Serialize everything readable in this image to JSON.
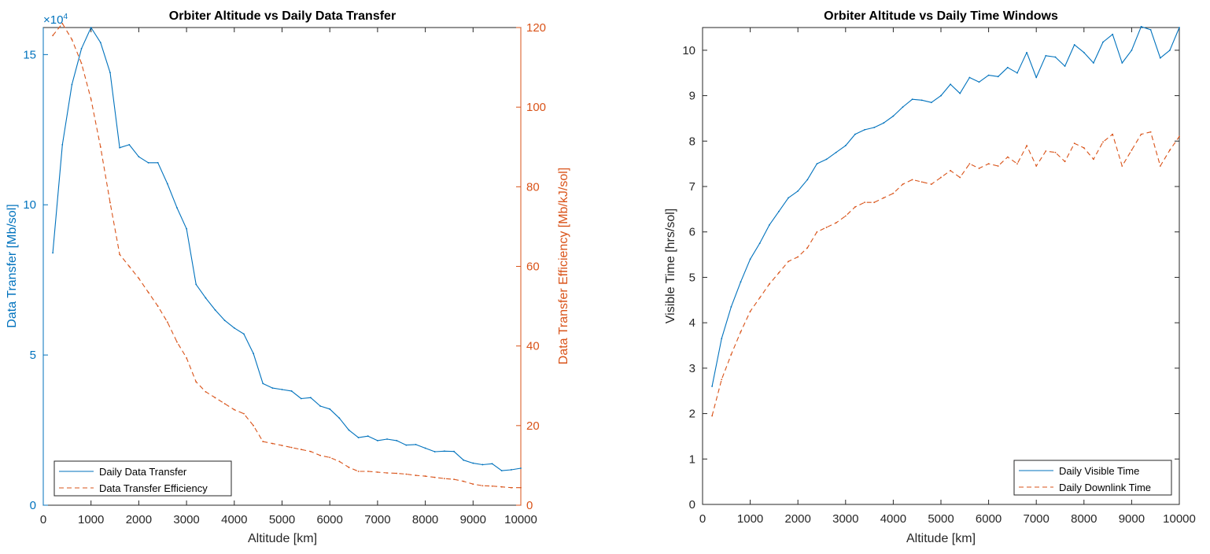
{
  "colors": {
    "blue": "#0072BD",
    "orange": "#D95319",
    "axis": "#262626"
  },
  "chart_data": [
    {
      "type": "line",
      "title": "Orbiter Altitude vs Daily Data Transfer",
      "xlabel": "Altitude [km]",
      "ylabel": "Data Transfer [Mb/sol]",
      "ylabel_right": "Data Transfer Efficiency [Mb/kJ/sol]",
      "exponent_label": "×10",
      "exponent_power": "4",
      "xlim": [
        0,
        10000
      ],
      "ylim": [
        0,
        159000
      ],
      "ylim_right": [
        0,
        120
      ],
      "x_ticks": [
        "0",
        "1000",
        "2000",
        "3000",
        "4000",
        "5000",
        "6000",
        "7000",
        "8000",
        "9000",
        "10000"
      ],
      "y_ticks": [
        "0",
        "5",
        "10",
        "15"
      ],
      "y_ticks_right": [
        "0",
        "20",
        "40",
        "60",
        "80",
        "100",
        "120"
      ],
      "legend_position": "bottom-left",
      "x": [
        200,
        400,
        600,
        800,
        1000,
        1200,
        1400,
        1600,
        1800,
        2000,
        2200,
        2400,
        2600,
        2800,
        3000,
        3200,
        3400,
        3600,
        3800,
        4000,
        4200,
        4400,
        4600,
        4800,
        5000,
        5200,
        5400,
        5600,
        5800,
        6000,
        6200,
        6400,
        6600,
        6800,
        7000,
        7200,
        7400,
        7600,
        7800,
        8000,
        8200,
        8400,
        8600,
        8800,
        9000,
        9200,
        9400,
        9600,
        9800,
        10000
      ],
      "series": [
        {
          "name": "Daily Data Transfer",
          "axis": "left",
          "style": "solid",
          "color": "#0072BD",
          "values": [
            84000,
            120000,
            140000,
            152000,
            159000,
            154000,
            144000,
            119000,
            120000,
            116000,
            114000,
            114000,
            107000,
            99000,
            92000,
            73500,
            69000,
            65000,
            61500,
            59000,
            57000,
            50500,
            40500,
            39000,
            38500,
            38000,
            35500,
            35800,
            33000,
            32000,
            29000,
            25000,
            22500,
            23000,
            21500,
            22000,
            21500,
            20000,
            20200,
            19000,
            17800,
            18000,
            17900,
            15000,
            14000,
            13500,
            13800,
            11500,
            11800,
            12300
          ]
        },
        {
          "name": "Data Transfer Efficiency",
          "axis": "right",
          "style": "dashed",
          "color": "#D95319",
          "values": [
            118,
            121,
            117,
            111,
            102,
            90,
            76,
            63,
            60,
            57,
            53.5,
            50,
            46,
            41,
            37,
            31,
            28.5,
            27,
            25.5,
            24,
            23,
            20,
            16,
            15.5,
            15,
            14.5,
            14,
            13.5,
            12.5,
            12,
            11,
            9.5,
            8.5,
            8.5,
            8.3,
            8.1,
            8,
            7.8,
            7.5,
            7.3,
            7,
            6.7,
            6.5,
            6,
            5.3,
            4.9,
            4.8,
            4.6,
            4.4,
            4.4
          ]
        }
      ]
    },
    {
      "type": "line",
      "title": "Orbiter Altitude vs Daily Time Windows",
      "xlabel": "Altitude [km]",
      "ylabel": "Visible Time  [hrs/sol]",
      "xlim": [
        0,
        10000
      ],
      "ylim": [
        0,
        10.5
      ],
      "x_ticks": [
        "0",
        "1000",
        "2000",
        "3000",
        "4000",
        "5000",
        "6000",
        "7000",
        "8000",
        "9000",
        "10000"
      ],
      "y_ticks": [
        "0",
        "1",
        "2",
        "3",
        "4",
        "5",
        "6",
        "7",
        "8",
        "9",
        "10"
      ],
      "legend_position": "bottom-right",
      "x": [
        200,
        400,
        600,
        800,
        1000,
        1200,
        1400,
        1600,
        1800,
        2000,
        2200,
        2400,
        2600,
        2800,
        3000,
        3200,
        3400,
        3600,
        3800,
        4000,
        4200,
        4400,
        4600,
        4800,
        5000,
        5200,
        5400,
        5600,
        5800,
        6000,
        6200,
        6400,
        6600,
        6800,
        7000,
        7200,
        7400,
        7600,
        7800,
        8000,
        8200,
        8400,
        8600,
        8800,
        9000,
        9200,
        9400,
        9600,
        9800,
        10000
      ],
      "series": [
        {
          "name": "Daily Visible Time",
          "style": "solid",
          "color": "#0072BD",
          "values": [
            2.6,
            3.65,
            4.35,
            4.9,
            5.4,
            5.75,
            6.15,
            6.45,
            6.75,
            6.9,
            7.15,
            7.5,
            7.6,
            7.75,
            7.9,
            8.15,
            8.25,
            8.3,
            8.4,
            8.55,
            8.75,
            8.92,
            8.9,
            8.85,
            9.0,
            9.25,
            9.05,
            9.4,
            9.3,
            9.45,
            9.42,
            9.62,
            9.5,
            9.95,
            9.4,
            9.88,
            9.85,
            9.65,
            10.12,
            9.95,
            9.72,
            10.18,
            10.35,
            9.72,
            10.0,
            10.52,
            10.45,
            9.83,
            10.0,
            10.5
          ]
        },
        {
          "name": "Daily Downlink Time",
          "style": "dashed",
          "color": "#D95319",
          "values": [
            1.95,
            2.75,
            3.3,
            3.8,
            4.25,
            4.55,
            4.85,
            5.1,
            5.35,
            5.45,
            5.65,
            6.0,
            6.1,
            6.2,
            6.35,
            6.55,
            6.65,
            6.65,
            6.75,
            6.85,
            7.05,
            7.15,
            7.1,
            7.05,
            7.2,
            7.35,
            7.2,
            7.5,
            7.4,
            7.5,
            7.45,
            7.65,
            7.5,
            7.9,
            7.45,
            7.78,
            7.75,
            7.55,
            7.95,
            7.85,
            7.6,
            7.98,
            8.15,
            7.45,
            7.8,
            8.15,
            8.2,
            7.45,
            7.8,
            8.1
          ]
        }
      ]
    }
  ]
}
